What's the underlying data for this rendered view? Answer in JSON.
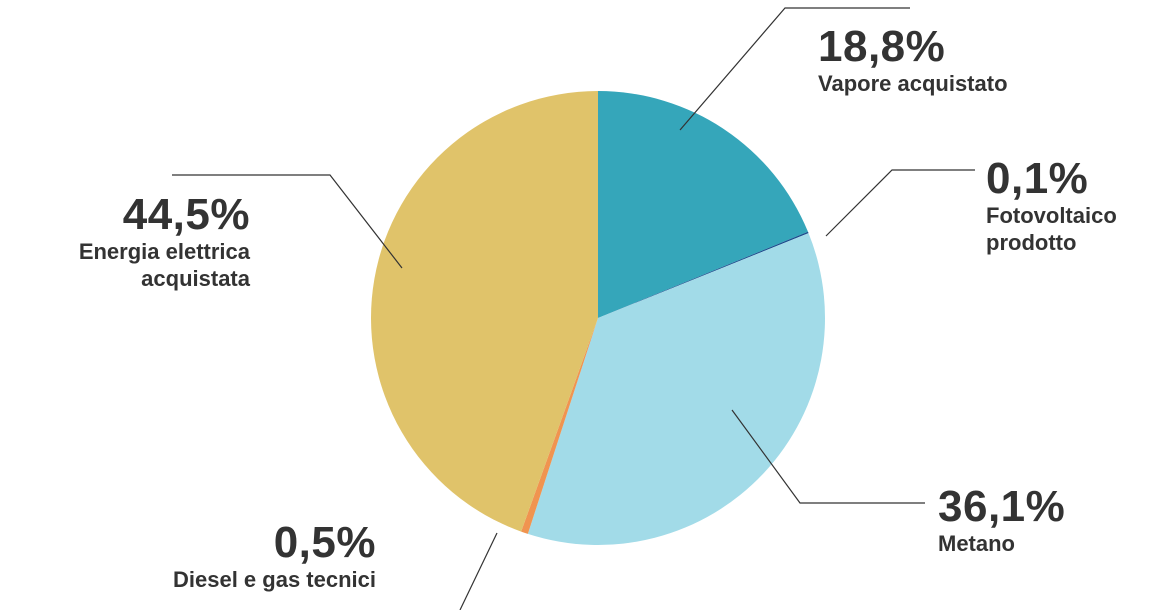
{
  "chart_data": {
    "type": "pie",
    "slices": [
      {
        "percent_label": "18,8%",
        "name": "Vapore acquistato",
        "value": 18.8,
        "color": "#35A6BA"
      },
      {
        "percent_label": "0,1%",
        "name": "Fotovoltaico prodotto",
        "value": 0.1,
        "color": "#1C4B8C"
      },
      {
        "percent_label": "36,1%",
        "name": "Metano",
        "value": 36.1,
        "color": "#A2DBE8"
      },
      {
        "percent_label": "0,5%",
        "name": "Diesel e gas tecnici",
        "value": 0.5,
        "color": "#F09450"
      },
      {
        "percent_label": "44,5%",
        "name": "Energia elettrica acquistata",
        "value": 44.5,
        "color": "#E0C36A"
      }
    ],
    "leader_color": "#333333"
  }
}
